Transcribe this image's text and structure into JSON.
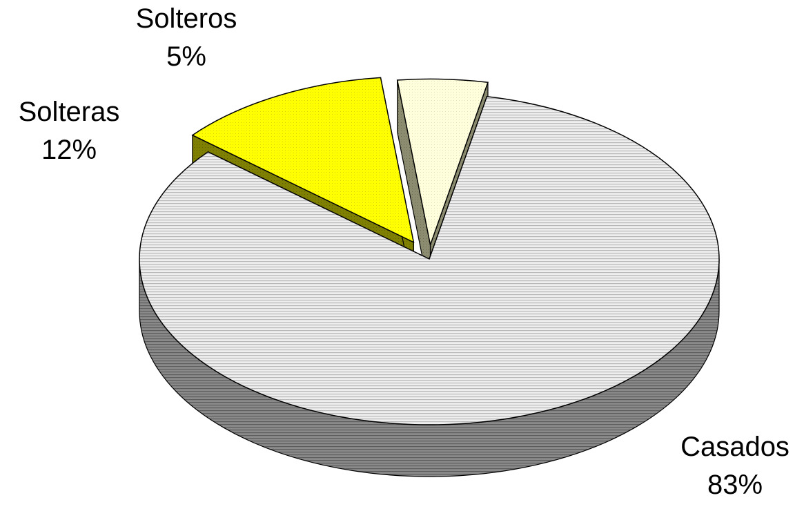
{
  "chart_data": {
    "type": "pie",
    "three_d": true,
    "exploded": true,
    "slices": [
      {
        "label": "Casados",
        "value": 83,
        "value_label": "83%",
        "color": "#d9d9d9",
        "side_color": "#7f7f7f",
        "pattern": "horizontal-lines"
      },
      {
        "label": "Solteras",
        "value": 12,
        "value_label": "12%",
        "color": "#ffff00",
        "side_color": "#808000",
        "pattern": "dots"
      },
      {
        "label": "Solteros",
        "value": 5,
        "value_label": "5%",
        "color": "#ffffcc",
        "side_color": "#808066",
        "pattern": "dots"
      }
    ],
    "legend": "none",
    "data_labels": "category-and-percent"
  }
}
